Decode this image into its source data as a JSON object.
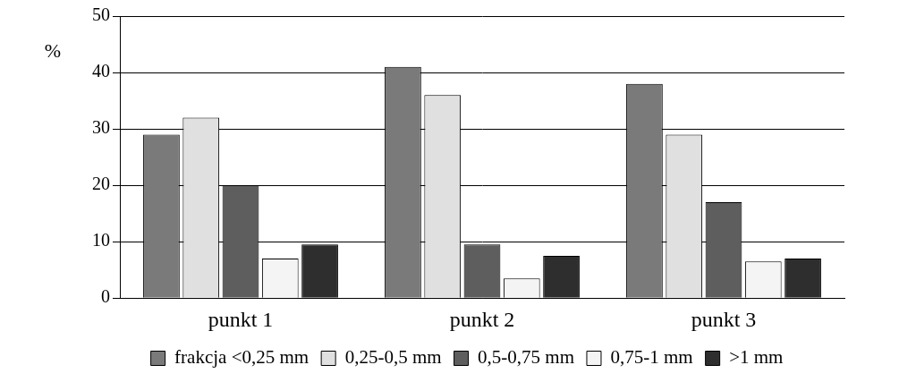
{
  "chart_data": {
    "type": "bar",
    "y_label": "%",
    "categories": [
      "punkt 1",
      "punkt 2",
      "punkt 3"
    ],
    "series": [
      {
        "name": "frakcja <0,25 mm",
        "color": "#7a7a7a",
        "values": [
          29,
          41,
          38
        ]
      },
      {
        "name": "0,25-0,5 mm",
        "color": "#e0e0e0",
        "values": [
          32,
          36,
          29
        ]
      },
      {
        "name": "0,5-0,75 mm",
        "color": "#5e5e5e",
        "values": [
          20,
          9.5,
          17
        ]
      },
      {
        "name": "0,75-1 mm",
        "color": "#f4f4f4",
        "values": [
          7,
          3.5,
          6.5
        ]
      },
      {
        "name": ">1 mm",
        "color": "#2e2e2e",
        "values": [
          9.5,
          7.5,
          7
        ]
      }
    ],
    "ylim": [
      0,
      50
    ],
    "yticks": [
      0,
      10,
      20,
      30,
      40,
      50
    ],
    "grid": true,
    "legend": "bottom"
  }
}
